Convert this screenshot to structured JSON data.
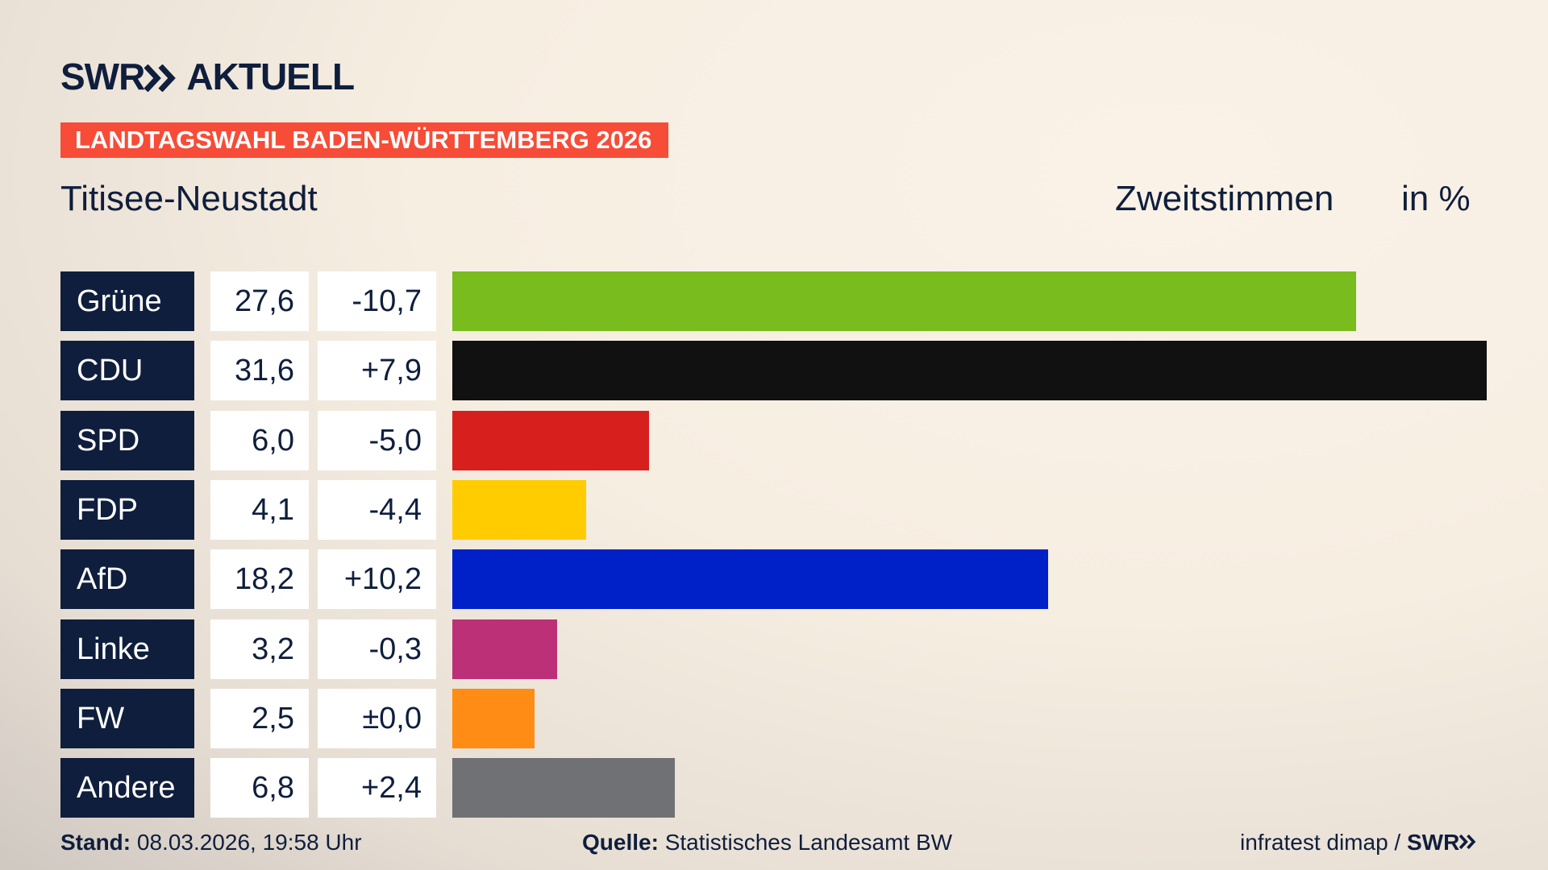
{
  "chart_data": {
    "type": "bar",
    "logo": [
      "SWR",
      "AKTUELL"
    ],
    "supertitle": "LANDTAGSWAHL BADEN-WÜRTTEMBERG 2026",
    "title": "Titisee-Neustadt",
    "measure": "Zweitstimmen",
    "unit": "in %",
    "categories": [
      "Grüne",
      "CDU",
      "SPD",
      "FDP",
      "AfD",
      "Linke",
      "FW",
      "Andere"
    ],
    "values": [
      27.6,
      31.6,
      6.0,
      4.1,
      18.2,
      3.2,
      2.5,
      6.8
    ],
    "value_labels": [
      "27,6",
      "31,6",
      "6,0",
      "4,1",
      "18,2",
      "3,2",
      "2,5",
      "6,8"
    ],
    "changes": [
      -10.7,
      7.9,
      -5.0,
      -4.4,
      10.2,
      -0.3,
      0.0,
      2.4
    ],
    "change_labels": [
      "-10,7",
      "+7,9",
      "-5,0",
      "-4,4",
      "+10,2",
      "-0,3",
      "±0,0",
      "+2,4"
    ],
    "colors": [
      "#78bc1e",
      "#111111",
      "#d7201e",
      "#ffcc00",
      "#0020c8",
      "#bb3076",
      "#ff8c14",
      "#707174"
    ],
    "stand_label": "Stand:",
    "stand": "08.03.2026, 19:58 Uhr",
    "source_label": "Quelle:",
    "source": "Statistisches Landesamt BW",
    "credit": "infratest dimap /",
    "credit_logo": "SWR"
  }
}
